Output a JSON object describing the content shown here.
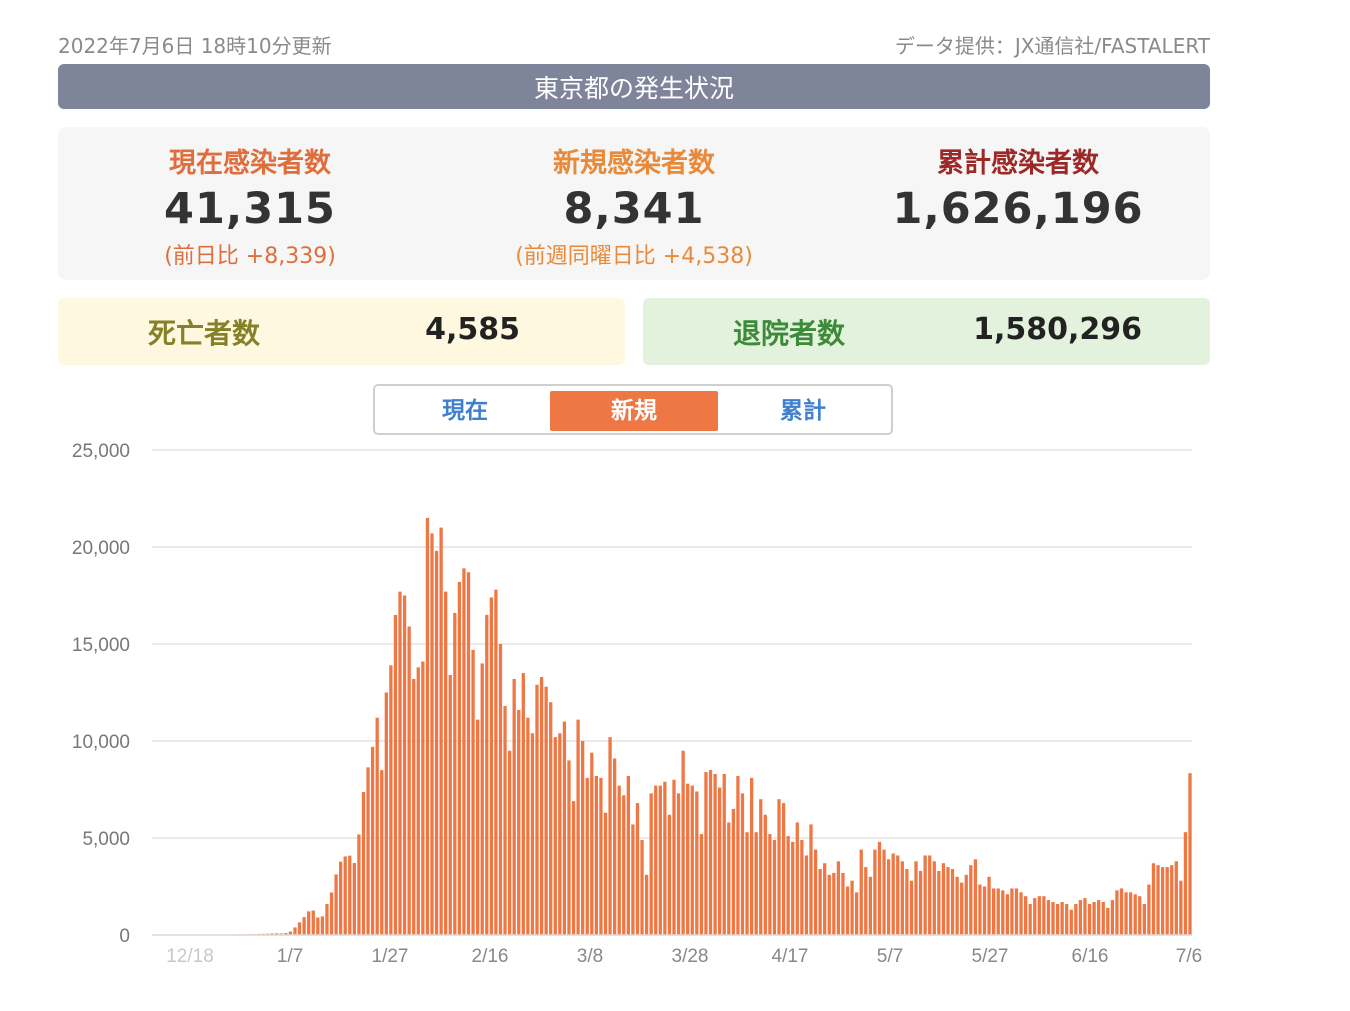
{
  "header": {
    "updated": "2022年7月6日 18時10分更新",
    "source": "データ提供：JX通信社/FASTALERT",
    "title": "東京都の発生状況"
  },
  "stats": {
    "current": {
      "label": "現在感染者数",
      "value": "41,315",
      "change": "(前日比 +8,339)"
    },
    "new": {
      "label": "新規感染者数",
      "value": "8,341",
      "change": "(前週同曜日比 +4,538)"
    },
    "total": {
      "label": "累計感染者数",
      "value": "1,626,196"
    }
  },
  "deaths": {
    "label": "死亡者数",
    "value": "4,585"
  },
  "recovered": {
    "label": "退院者数",
    "value": "1,580,296"
  },
  "tabs": [
    {
      "label": "現在",
      "active": false
    },
    {
      "label": "新規",
      "active": true
    },
    {
      "label": "累計",
      "active": false
    }
  ],
  "colors": {
    "bar": "#ee7744",
    "accent": "#ee7744",
    "title_bar": "#7e8499"
  },
  "chart_data": {
    "type": "bar",
    "x_start": "2021-12-08",
    "x_end": "2022-07-06",
    "x_ticks": [
      "12/18",
      "1/7",
      "1/27",
      "2/16",
      "3/8",
      "3/28",
      "4/17",
      "5/7",
      "5/27",
      "6/16",
      "7/6"
    ],
    "y_ticks": [
      "0",
      "5,000",
      "10,000",
      "15,000",
      "20,000",
      "25,000"
    ],
    "ylim": [
      0,
      25000
    ],
    "grid": true,
    "values": [
      6,
      8,
      9,
      7,
      8,
      10,
      12,
      11,
      15,
      16,
      17,
      14,
      12,
      20,
      22,
      24,
      27,
      30,
      33,
      37,
      40,
      45,
      55,
      60,
      65,
      80,
      85,
      78,
      100,
      180,
      390,
      650,
      920,
      1220,
      1260,
      900,
      960,
      1600,
      2190,
      3120,
      3780,
      4050,
      4090,
      3710,
      5180,
      7370,
      8640,
      9700,
      11200,
      8500,
      12500,
      13900,
      16500,
      17700,
      17500,
      15900,
      13200,
      13800,
      14100,
      21500,
      20700,
      19800,
      21000,
      17700,
      13400,
      16600,
      18200,
      18900,
      18700,
      14700,
      11100,
      14000,
      16500,
      17400,
      17800,
      15000,
      11800,
      9500,
      13200,
      11600,
      13500,
      11200,
      10400,
      12900,
      13300,
      12800,
      12000,
      10200,
      10400,
      11000,
      9000,
      6900,
      11100,
      10000,
      8100,
      9400,
      8200,
      8100,
      6300,
      10200,
      9100,
      7700,
      7200,
      8200,
      5700,
      6800,
      4900,
      3100,
      7300,
      7700,
      7700,
      7900,
      6200,
      8000,
      7300,
      9500,
      7800,
      7700,
      7400,
      5200,
      8400,
      8500,
      8300,
      7600,
      8300,
      5800,
      6500,
      8200,
      7300,
      5300,
      8100,
      5300,
      7000,
      6200,
      5200,
      4900,
      7000,
      6800,
      5100,
      4800,
      5800,
      4900,
      4100,
      5700,
      4400,
      3400,
      3700,
      3100,
      3200,
      3800,
      3200,
      2500,
      2800,
      2200,
      4400,
      3500,
      3000,
      4400,
      4800,
      4400,
      3900,
      4200,
      4100,
      3800,
      3400,
      2800,
      3800,
      3300,
      4100,
      4100,
      3800,
      3300,
      3700,
      3500,
      3400,
      3000,
      2700,
      3100,
      3600,
      3900,
      2600,
      2500,
      3000,
      2400,
      2400,
      2300,
      2100,
      2400,
      2400,
      2200,
      2000,
      1600,
      1900,
      2000,
      2000,
      1800,
      1700,
      1600,
      1700,
      1600,
      1300,
      1600,
      1800,
      1900,
      1600,
      1700,
      1800,
      1700,
      1400,
      1800,
      2300,
      2400,
      2200,
      2200,
      2100,
      2000,
      1600,
      2600,
      3700,
      3600,
      3500,
      3500,
      3600,
      3800,
      2800,
      5300,
      8341
    ]
  }
}
